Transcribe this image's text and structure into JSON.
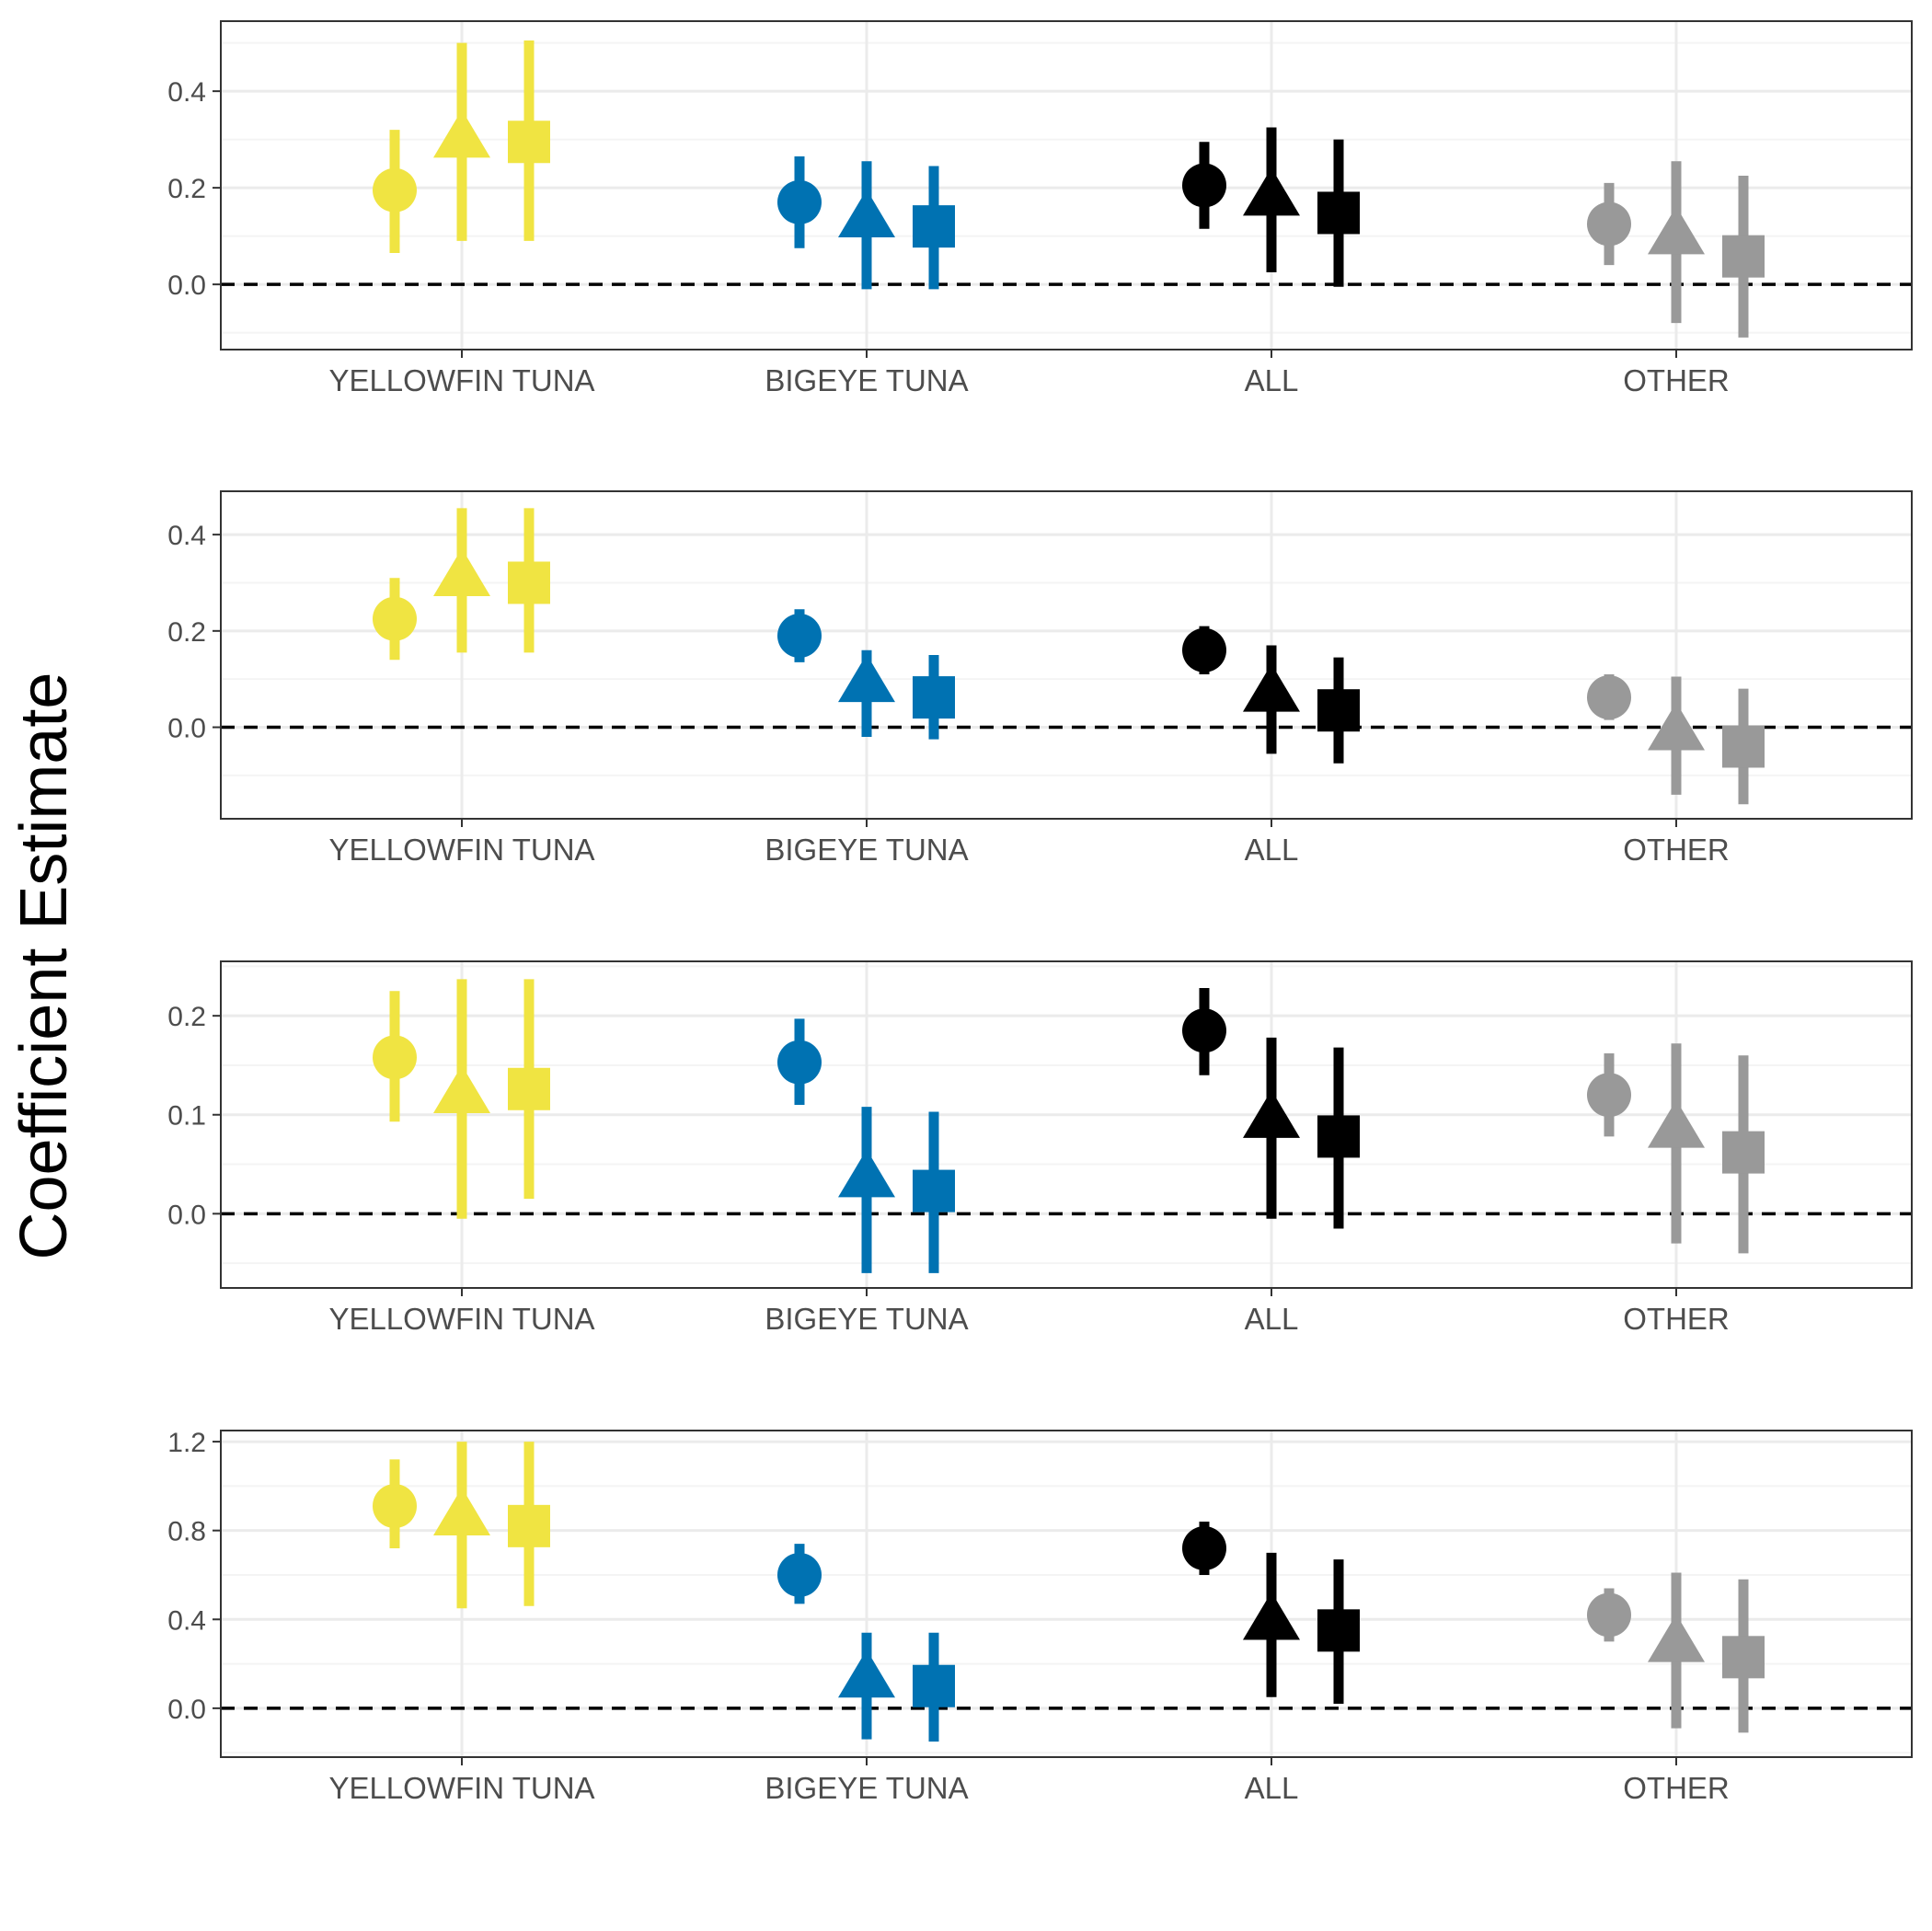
{
  "colors": {
    "YELLOWFIN TUNA": "#F0E442",
    "BIGEYE TUNA": "#0072B2",
    "ALL": "#000000",
    "OTHER": "#999999",
    "grid_major": "#ebebeb",
    "grid_minor": "#f4f4f4",
    "panel_border": "#333333",
    "tick_text": "#4d4d4d"
  },
  "shapes": [
    "circle",
    "triangle",
    "square"
  ],
  "chart_data": [
    {
      "type": "pointrange",
      "categories": [
        "YELLOWFIN TUNA",
        "BIGEYE TUNA",
        "ALL",
        "OTHER"
      ],
      "ylabel": "Coefficient Estimate",
      "ylim": [
        -0.135,
        0.545
      ],
      "yticks": [
        0.0,
        0.2,
        0.4
      ],
      "ytick_labels": [
        "0.0",
        "0.2",
        "0.4"
      ],
      "reference_line": 0,
      "series": [
        {
          "shape": "circle",
          "estimates": [
            0.195,
            0.17,
            0.205,
            0.125
          ],
          "lower": [
            0.065,
            0.075,
            0.115,
            0.04
          ],
          "upper": [
            0.32,
            0.265,
            0.295,
            0.21
          ]
        },
        {
          "shape": "triangle",
          "estimates": [
            0.3,
            0.135,
            0.18,
            0.1
          ],
          "lower": [
            0.09,
            -0.01,
            0.025,
            -0.08
          ],
          "upper": [
            0.5,
            0.255,
            0.325,
            0.255
          ]
        },
        {
          "shape": "square",
          "estimates": [
            0.295,
            0.12,
            0.148,
            0.058
          ],
          "lower": [
            0.09,
            -0.01,
            -0.005,
            -0.11
          ],
          "upper": [
            0.505,
            0.245,
            0.3,
            0.225
          ]
        }
      ]
    },
    {
      "type": "pointrange",
      "categories": [
        "YELLOWFIN TUNA",
        "BIGEYE TUNA",
        "ALL",
        "OTHER"
      ],
      "ylabel": "Coefficient Estimate",
      "ylim": [
        -0.19,
        0.49
      ],
      "yticks": [
        0.0,
        0.2,
        0.4
      ],
      "ytick_labels": [
        "0.0",
        "0.2",
        "0.4"
      ],
      "reference_line": 0,
      "series": [
        {
          "shape": "circle",
          "estimates": [
            0.225,
            0.19,
            0.16,
            0.062
          ],
          "lower": [
            0.14,
            0.135,
            0.11,
            0.015
          ],
          "upper": [
            0.31,
            0.245,
            0.21,
            0.11
          ]
        },
        {
          "shape": "triangle",
          "estimates": [
            0.31,
            0.09,
            0.07,
            -0.01
          ],
          "lower": [
            0.155,
            -0.02,
            -0.055,
            -0.14
          ],
          "upper": [
            0.455,
            0.16,
            0.17,
            0.105
          ]
        },
        {
          "shape": "square",
          "estimates": [
            0.3,
            0.062,
            0.035,
            -0.04
          ],
          "lower": [
            0.155,
            -0.025,
            -0.075,
            -0.16
          ],
          "upper": [
            0.455,
            0.15,
            0.145,
            0.08
          ]
        }
      ]
    },
    {
      "type": "pointrange",
      "categories": [
        "YELLOWFIN TUNA",
        "BIGEYE TUNA",
        "ALL",
        "OTHER"
      ],
      "ylabel": "Coefficient Estimate",
      "ylim": [
        -0.075,
        0.255
      ],
      "yticks": [
        0.0,
        0.1,
        0.2
      ],
      "ytick_labels": [
        "0.0",
        "0.1",
        "0.2"
      ],
      "reference_line": 0,
      "series": [
        {
          "shape": "circle",
          "estimates": [
            0.158,
            0.153,
            0.185,
            0.12
          ],
          "lower": [
            0.093,
            0.11,
            0.14,
            0.078
          ],
          "upper": [
            0.225,
            0.197,
            0.228,
            0.162
          ]
        },
        {
          "shape": "triangle",
          "estimates": [
            0.12,
            0.035,
            0.095,
            0.085
          ],
          "lower": [
            -0.005,
            -0.06,
            -0.005,
            -0.03
          ],
          "upper": [
            0.237,
            0.108,
            0.178,
            0.172
          ]
        },
        {
          "shape": "square",
          "estimates": [
            0.126,
            0.023,
            0.078,
            0.062
          ],
          "lower": [
            0.015,
            -0.06,
            -0.015,
            -0.04
          ],
          "upper": [
            0.237,
            0.103,
            0.168,
            0.16
          ]
        }
      ]
    },
    {
      "type": "pointrange",
      "categories": [
        "YELLOWFIN TUNA",
        "BIGEYE TUNA",
        "ALL",
        "OTHER"
      ],
      "ylabel": "Coefficient Estimate",
      "ylim": [
        -0.22,
        1.25
      ],
      "yticks": [
        0.0,
        0.4,
        0.8,
        1.2
      ],
      "ytick_labels": [
        "0.0",
        "0.4",
        "0.8",
        "1.2"
      ],
      "reference_line": 0,
      "series": [
        {
          "shape": "circle",
          "estimates": [
            0.91,
            0.6,
            0.72,
            0.42
          ],
          "lower": [
            0.72,
            0.47,
            0.6,
            0.3
          ],
          "upper": [
            1.12,
            0.74,
            0.84,
            0.54
          ]
        },
        {
          "shape": "triangle",
          "estimates": [
            0.86,
            0.13,
            0.39,
            0.29
          ],
          "lower": [
            0.45,
            -0.14,
            0.05,
            -0.09
          ],
          "upper": [
            1.2,
            0.34,
            0.7,
            0.61
          ]
        },
        {
          "shape": "square",
          "estimates": [
            0.82,
            0.1,
            0.35,
            0.23
          ],
          "lower": [
            0.46,
            -0.15,
            0.02,
            -0.11
          ],
          "upper": [
            1.2,
            0.34,
            0.67,
            0.58
          ]
        }
      ]
    }
  ],
  "ylabel": "Coefficient Estimate"
}
